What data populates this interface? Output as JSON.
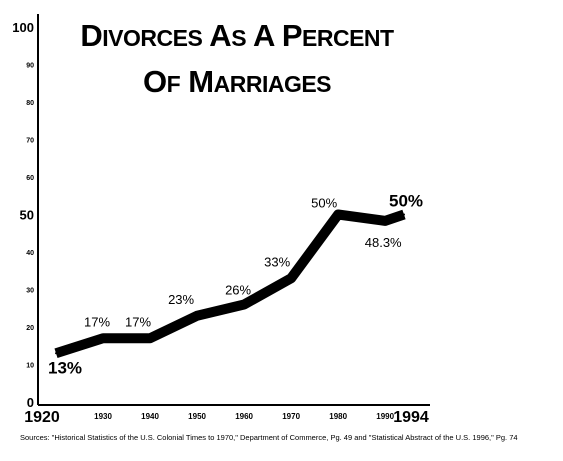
{
  "chart_data": {
    "type": "line",
    "title_lines": [
      "DIVORCES AS A PERCENT",
      "OF MARRIAGES"
    ],
    "x": [
      1920,
      1930,
      1940,
      1950,
      1960,
      1970,
      1980,
      1990,
      1994
    ],
    "values": [
      13,
      17,
      17,
      23,
      26,
      33,
      50,
      48.3,
      50
    ],
    "ylim": [
      0,
      100
    ],
    "xlim": [
      1920,
      1994
    ],
    "ytick_labels": [
      "0",
      "10",
      "20",
      "30",
      "40",
      "50",
      "60",
      "70",
      "80",
      "90",
      "100"
    ],
    "xtick_labels": [
      "1920",
      "1930",
      "1940",
      "1950",
      "1960",
      "1970",
      "1980",
      "1990",
      "1994"
    ],
    "data_labels": [
      {
        "x": 1920,
        "y": 13,
        "text": "13%",
        "emphasis": true
      },
      {
        "x": 1930,
        "y": 17,
        "text": "17%"
      },
      {
        "x": 1940,
        "y": 17,
        "text": "17%"
      },
      {
        "x": 1950,
        "y": 23,
        "text": "23%"
      },
      {
        "x": 1960,
        "y": 26,
        "text": "26%"
      },
      {
        "x": 1970,
        "y": 33,
        "text": "33%"
      },
      {
        "x": 1980,
        "y": 50,
        "text": "50%"
      },
      {
        "x": 1990,
        "y": 48.3,
        "text": "48.3%"
      },
      {
        "x": 1994,
        "y": 50,
        "text": "50%",
        "emphasis": true
      }
    ],
    "grid": false,
    "line_color": "#000000",
    "source": "Sources: \"Historical Statistics of the U.S. Colonial Times to 1970,\" Department of Commerce, Pg. 49 and \"Statistical Abstract of the U.S. 1996,\" Pg. 74"
  }
}
